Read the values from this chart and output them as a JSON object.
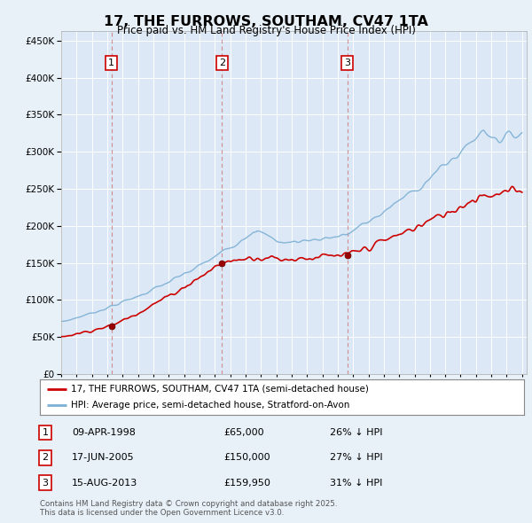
{
  "title": "17, THE FURROWS, SOUTHAM, CV47 1TA",
  "subtitle": "Price paid vs. HM Land Registry's House Price Index (HPI)",
  "background_color": "#e8f0f8",
  "plot_bg_color": "#dce8f5",
  "ylim": [
    0,
    462500
  ],
  "yticks": [
    0,
    50000,
    100000,
    150000,
    200000,
    250000,
    300000,
    350000,
    400000,
    450000
  ],
  "xstart_year": 1995,
  "xend_year": 2025,
  "sales": [
    {
      "year": 1998.27,
      "price": 65000,
      "label": "1"
    },
    {
      "year": 2005.46,
      "price": 150000,
      "label": "2"
    },
    {
      "year": 2013.62,
      "price": 159950,
      "label": "3"
    }
  ],
  "sale_color": "#cc0000",
  "hpi_color": "#7bafd4",
  "legend_entries": [
    "17, THE FURROWS, SOUTHAM, CV47 1TA (semi-detached house)",
    "HPI: Average price, semi-detached house, Stratford-on-Avon"
  ],
  "table_rows": [
    {
      "num": "1",
      "date": "09-APR-1998",
      "price": "£65,000",
      "hpi": "26% ↓ HPI"
    },
    {
      "num": "2",
      "date": "17-JUN-2005",
      "price": "£150,000",
      "hpi": "27% ↓ HPI"
    },
    {
      "num": "3",
      "date": "15-AUG-2013",
      "price": "£159,950",
      "hpi": "31% ↓ HPI"
    }
  ],
  "footer": "Contains HM Land Registry data © Crown copyright and database right 2025.\nThis data is licensed under the Open Government Licence v3.0."
}
